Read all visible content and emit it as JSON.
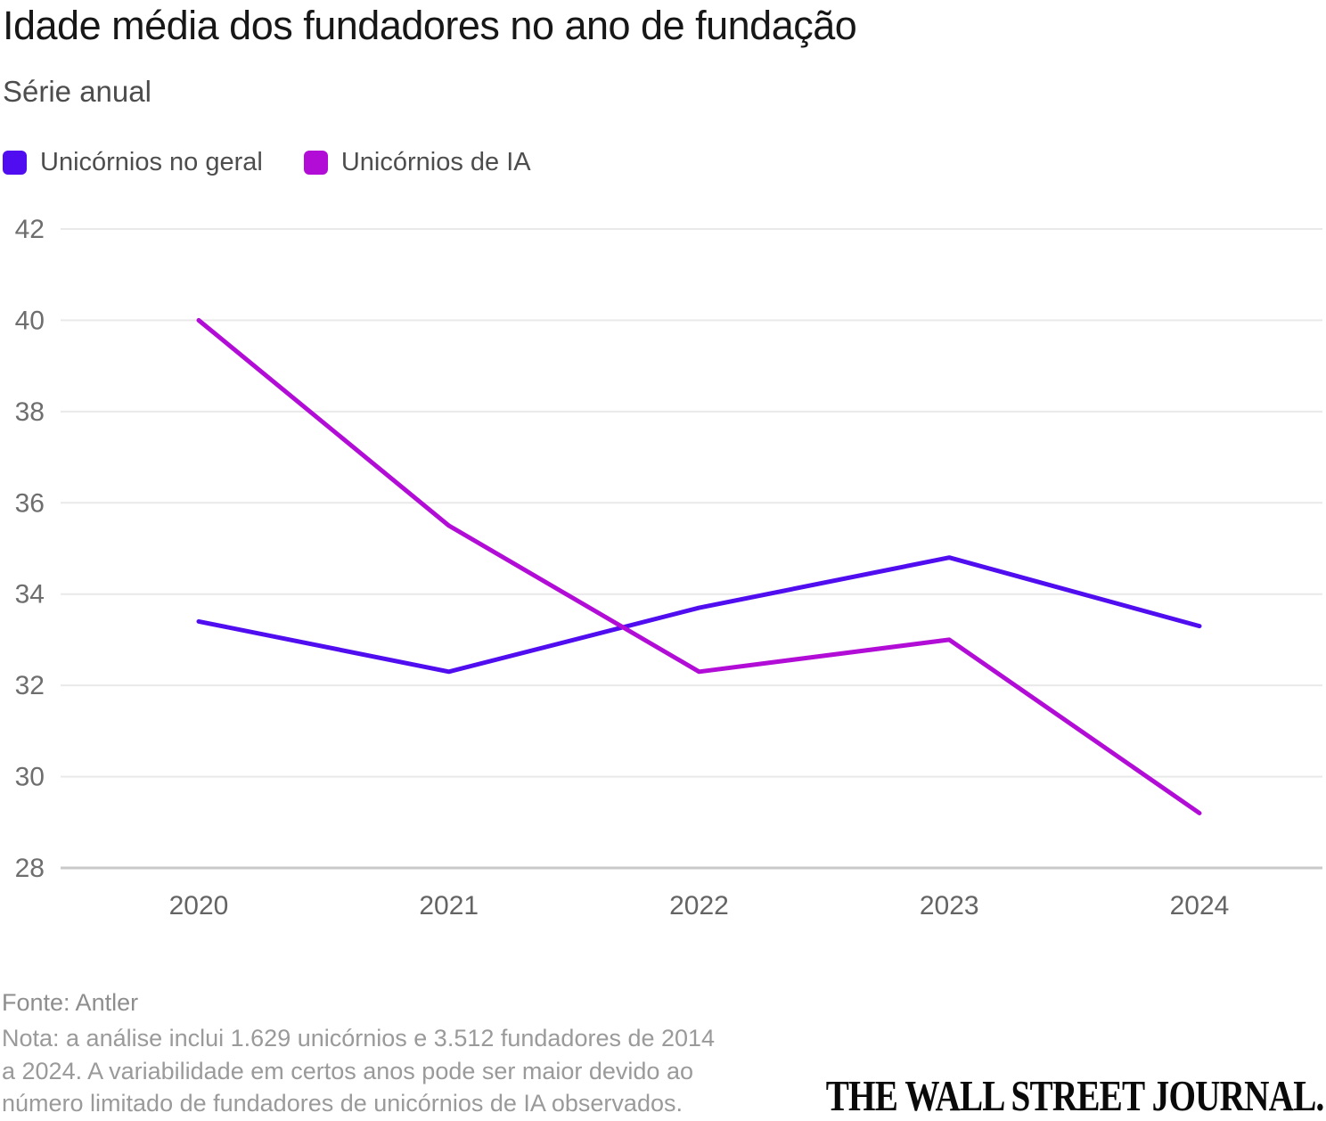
{
  "header": {
    "title": "Idade média dos fundadores no ano de fundação",
    "subtitle": "Série anual"
  },
  "legend": [
    {
      "label": "Unicórnios no geral",
      "color": "#500ef0"
    },
    {
      "label": "Unicórnios de IA",
      "color": "#b20dd6"
    }
  ],
  "chart_data": {
    "type": "line",
    "title": "Idade média dos fundadores no ano de fundação",
    "subtitle": "Série anual",
    "x": [
      "2020",
      "2021",
      "2022",
      "2023",
      "2024"
    ],
    "series": [
      {
        "name": "Unicórnios no geral",
        "color": "#500ef0",
        "values": [
          33.4,
          32.3,
          33.7,
          34.8,
          33.3
        ]
      },
      {
        "name": "Unicórnios de IA",
        "color": "#b20dd6",
        "values": [
          40.0,
          35.5,
          32.3,
          33.0,
          29.2
        ]
      }
    ],
    "ylim": [
      28,
      42
    ],
    "yticks": [
      28,
      30,
      32,
      34,
      36,
      38,
      40,
      42
    ],
    "xlabel": "",
    "ylabel": "",
    "grid": "horizontal",
    "legend_position": "top-left",
    "axis_colors": {
      "gridline": "#e9e9e9",
      "baseline": "#c9c9c9",
      "tick_text": "#6e6e6e",
      "x_tick_text": "#646464"
    }
  },
  "footer": {
    "source": "Fonte: Antler",
    "note": "Nota: a análise inclui 1.629 unicórnios e 3.512 fundadores de 2014\na 2024. A variabilidade em certos anos pode ser maior devido ao\nnúmero limitado de fundadores de unicórnios de IA observados.",
    "brand": "THE WALL STREET JOURNAL."
  }
}
